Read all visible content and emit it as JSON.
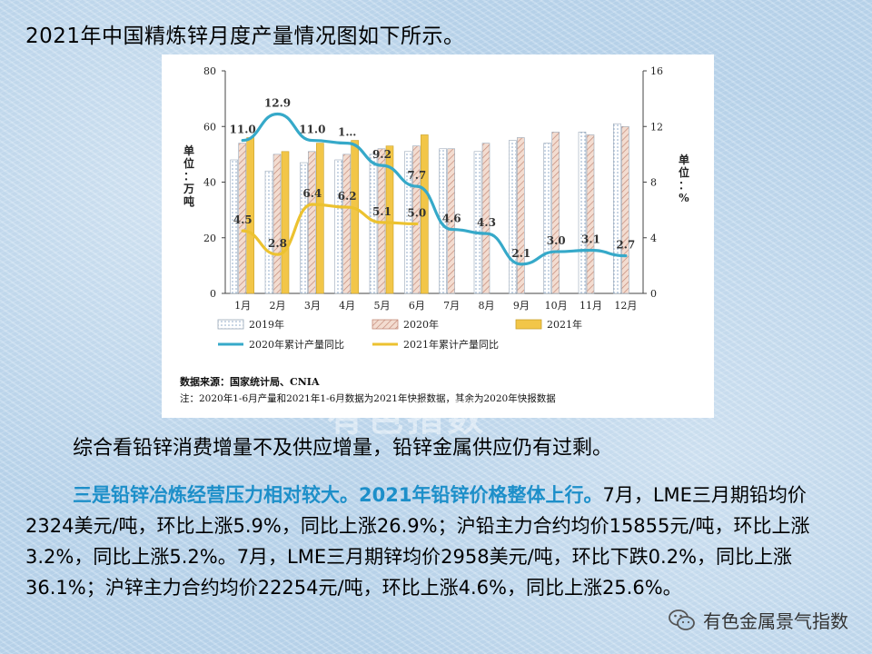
{
  "heading": "2021年中国精炼锌月度产量情况图如下所示。",
  "chart_data": {
    "type": "bar+line",
    "categories": [
      "1月",
      "2月",
      "3月",
      "4月",
      "5月",
      "6月",
      "7月",
      "8月",
      "9月",
      "10月",
      "11月",
      "12月"
    ],
    "left_axis": {
      "label": "单位：万吨",
      "ticks": [
        "0",
        "20",
        "40",
        "60",
        "80"
      ],
      "range": [
        0,
        80
      ]
    },
    "right_axis": {
      "label": "单位：%",
      "ticks": [
        "0",
        "4",
        "8",
        "12",
        "16"
      ],
      "range": [
        0,
        16
      ]
    },
    "bar_series": [
      {
        "name": "2019年",
        "values": [
          48,
          44,
          47,
          48,
          50,
          51,
          52,
          51,
          55,
          54,
          58,
          61
        ],
        "color": "#ffffff",
        "pattern": "dots"
      },
      {
        "name": "2020年",
        "values": [
          54,
          50,
          51,
          50,
          52,
          53,
          52,
          54,
          56,
          58,
          57,
          60
        ],
        "color": "#e9c6b6",
        "pattern": "hatch"
      },
      {
        "name": "2021年",
        "values": [
          56,
          51,
          54,
          55,
          53,
          57,
          null,
          null,
          null,
          null,
          null,
          null
        ],
        "color": "#f2c648",
        "pattern": "solid"
      }
    ],
    "line_series": [
      {
        "name": "2020年累计产量同比",
        "values": [
          11.0,
          12.9,
          11.0,
          10.8,
          9.2,
          7.7,
          4.6,
          4.3,
          2.1,
          3.0,
          3.1,
          2.7
        ],
        "labels": [
          "11.0",
          "12.9",
          "11.0",
          "1…",
          "9.2",
          "7.7",
          "4.6",
          "4.3",
          "2.1",
          "3.0",
          "3.1",
          "2.7"
        ],
        "color": "#36a9c9"
      },
      {
        "name": "2021年累计产量同比",
        "values": [
          4.5,
          2.8,
          6.4,
          6.2,
          5.1,
          5.0
        ],
        "labels": [
          "4.5",
          "2.8",
          "6.4",
          "6.2",
          "5.1",
          "5.0"
        ],
        "color": "#ecc230"
      }
    ],
    "source": "数据来源：国家统计局、CNIA",
    "note": "注：2020年1-6月产量和2021年1-6月数据为2021年快报数据，其余为2020年快报数据"
  },
  "watermark": "有色指数",
  "paragraph1": "综合看铅锌消费增量不及供应增量，铅锌金属供应仍有过剩。",
  "paragraph2": {
    "highlight": "三是铅锌冶炼经营压力相对较大。2021年铅锌价格整体上行。",
    "body": "7月，LME三月期铅均价2324美元/吨，环比上涨5.9%，同比上涨26.9%；沪铅主力合约均价15855元/吨，环比上涨3.2%，同比上涨5.2%。7月，LME三月期锌均价2958美元/吨，环比下跌0.2%，同比上涨36.1%；沪锌主力合约均价22254元/吨，环比上涨4.6%，同比上涨25.6%。"
  },
  "footer": {
    "text": "有色金属景气指数",
    "icon": "wechat-icon"
  }
}
